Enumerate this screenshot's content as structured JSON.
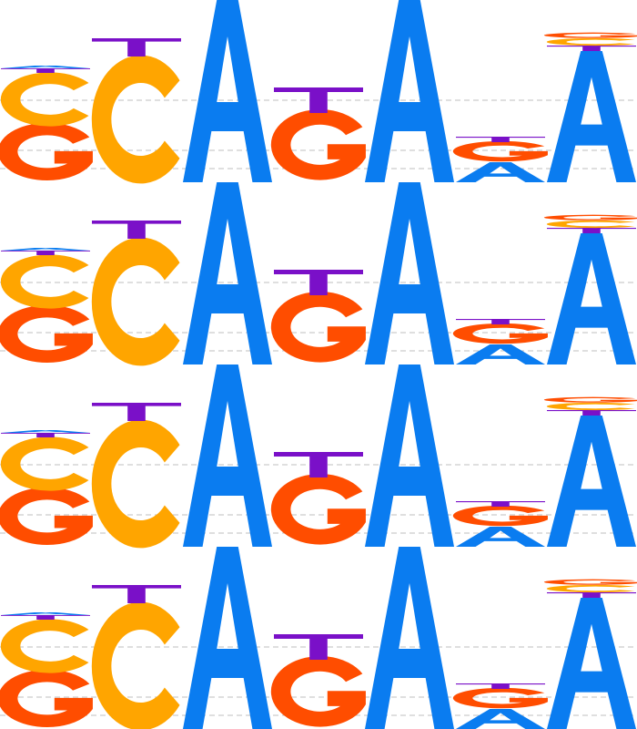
{
  "logo": {
    "type": "sequence-logo",
    "repeat_count": 4,
    "colors": {
      "A": "#0a7cf0",
      "C": "#ffa500",
      "G": "#ff4d00",
      "T": "#7a10c8"
    },
    "positions": [
      {
        "letters": [
          {
            "base": "G",
            "height": 0.31
          },
          {
            "base": "C",
            "height": 0.29
          },
          {
            "base": "T",
            "height": 0.025
          },
          {
            "base": "A",
            "height": 0.015
          }
        ]
      },
      {
        "letters": [
          {
            "base": "C",
            "height": 0.69
          },
          {
            "base": "T",
            "height": 0.1
          }
        ]
      },
      {
        "letters": [
          {
            "base": "A",
            "height": 1.0
          }
        ]
      },
      {
        "letters": [
          {
            "base": "G",
            "height": 0.38
          },
          {
            "base": "T",
            "height": 0.14
          }
        ]
      },
      {
        "letters": [
          {
            "base": "A",
            "height": 1.0
          }
        ]
      },
      {
        "letters": [
          {
            "base": "A",
            "height": 0.11
          },
          {
            "base": "G",
            "height": 0.11
          },
          {
            "base": "T",
            "height": 0.03
          }
        ]
      },
      {
        "letters": [
          {
            "base": "A",
            "height": 0.72
          },
          {
            "base": "T",
            "height": 0.03
          },
          {
            "base": "C",
            "height": 0.04
          },
          {
            "base": "G",
            "height": 0.03
          }
        ]
      }
    ]
  }
}
